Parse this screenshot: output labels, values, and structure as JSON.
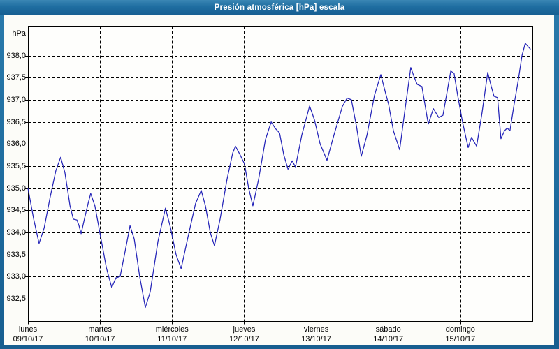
{
  "window": {
    "title": "Presión atmosférica [hPa] escala"
  },
  "colors": {
    "frame_blue": "#1d6b9e",
    "titlebar_top": "#3a86b4",
    "titlebar_bottom": "#175f92",
    "content_bg": "#fcfcf8",
    "plot_bg": "#fefefc",
    "grid_color": "#000000",
    "line_color": "#2424b8",
    "title_text": "#ffffff",
    "label_text": "#000000"
  },
  "chart_data": {
    "type": "line",
    "title": "Presión atmosférica [hPa] escala",
    "unit_label": "hPa",
    "ylabel": "hPa",
    "ylim": [
      932.0,
      938.67
    ],
    "grid": "dashed",
    "legend": "none",
    "x_total_hours": 168,
    "y_ticks": [
      {
        "value": 938.5,
        "label": "hPa"
      },
      {
        "value": 938.0,
        "label": "938,0"
      },
      {
        "value": 937.5,
        "label": "937,5"
      },
      {
        "value": 937.0,
        "label": "937,0"
      },
      {
        "value": 936.5,
        "label": "936,5"
      },
      {
        "value": 936.0,
        "label": "936,0"
      },
      {
        "value": 935.5,
        "label": "935,5"
      },
      {
        "value": 935.0,
        "label": "935,0"
      },
      {
        "value": 934.5,
        "label": "934,5"
      },
      {
        "value": 934.0,
        "label": "934,0"
      },
      {
        "value": 933.5,
        "label": "933,5"
      },
      {
        "value": 933.0,
        "label": "933,0"
      },
      {
        "value": 932.5,
        "label": "932,5"
      }
    ],
    "x_days": [
      {
        "weekday": "lunes",
        "date": "09/10/17"
      },
      {
        "weekday": "martes",
        "date": "10/10/17"
      },
      {
        "weekday": "miércoles",
        "date": "11/10/17"
      },
      {
        "weekday": "jueves",
        "date": "12/10/17"
      },
      {
        "weekday": "viernes",
        "date": "13/10/17"
      },
      {
        "weekday": "sábado",
        "date": "14/10/17"
      },
      {
        "weekday": "domingo",
        "date": "15/10/17"
      }
    ],
    "series": [
      {
        "name": "Presión atmosférica",
        "color": "#2424b8",
        "points_format": "[hours_since_monday_00, hPa]",
        "points": [
          [
            0,
            935.0
          ],
          [
            1.9,
            934.3
          ],
          [
            3.7,
            933.75
          ],
          [
            5.4,
            934.1
          ],
          [
            7.4,
            934.8
          ],
          [
            9.3,
            935.4
          ],
          [
            10.9,
            935.7
          ],
          [
            12.3,
            935.35
          ],
          [
            14,
            934.6
          ],
          [
            15.1,
            934.3
          ],
          [
            16.3,
            934.28
          ],
          [
            17,
            934.15
          ],
          [
            17.7,
            933.97
          ],
          [
            18.8,
            934.3
          ],
          [
            20,
            934.65
          ],
          [
            20.9,
            934.88
          ],
          [
            22.3,
            934.6
          ],
          [
            24.2,
            933.9
          ],
          [
            26.1,
            933.2
          ],
          [
            27.9,
            932.75
          ],
          [
            29.3,
            932.97
          ],
          [
            30.7,
            933.0
          ],
          [
            32.3,
            933.55
          ],
          [
            34,
            934.15
          ],
          [
            35.4,
            933.85
          ],
          [
            37.2,
            933.0
          ],
          [
            39.1,
            932.3
          ],
          [
            40.7,
            932.65
          ],
          [
            43.3,
            933.8
          ],
          [
            45.8,
            934.55
          ],
          [
            47.5,
            934.1
          ],
          [
            49.3,
            933.5
          ],
          [
            51,
            933.18
          ],
          [
            53.3,
            933.9
          ],
          [
            55.8,
            934.65
          ],
          [
            57.7,
            934.95
          ],
          [
            59.1,
            934.6
          ],
          [
            60.7,
            934.0
          ],
          [
            62.1,
            933.7
          ],
          [
            64,
            934.3
          ],
          [
            66.3,
            935.2
          ],
          [
            68.2,
            935.8
          ],
          [
            69.1,
            935.95
          ],
          [
            70.7,
            935.75
          ],
          [
            72.1,
            935.55
          ],
          [
            73.5,
            935.0
          ],
          [
            74.9,
            934.6
          ],
          [
            76.8,
            935.2
          ],
          [
            79.1,
            936.1
          ],
          [
            81,
            936.5
          ],
          [
            82.4,
            936.35
          ],
          [
            83.8,
            936.25
          ],
          [
            85.2,
            935.75
          ],
          [
            86.6,
            935.43
          ],
          [
            88,
            935.62
          ],
          [
            89.1,
            935.48
          ],
          [
            91.2,
            936.2
          ],
          [
            93.8,
            936.86
          ],
          [
            95.4,
            936.55
          ],
          [
            97.3,
            936.0
          ],
          [
            99.6,
            935.63
          ],
          [
            101.9,
            936.2
          ],
          [
            104.7,
            936.85
          ],
          [
            106.3,
            937.04
          ],
          [
            107.7,
            937.0
          ],
          [
            109.4,
            936.4
          ],
          [
            111,
            935.72
          ],
          [
            112.9,
            936.2
          ],
          [
            115.4,
            937.1
          ],
          [
            117.5,
            937.57
          ],
          [
            118.9,
            937.2
          ],
          [
            120.1,
            936.9
          ],
          [
            121.7,
            936.3
          ],
          [
            123.8,
            935.87
          ],
          [
            125.6,
            936.8
          ],
          [
            127.5,
            937.73
          ],
          [
            128.7,
            937.5
          ],
          [
            129.6,
            937.35
          ],
          [
            131.2,
            937.3
          ],
          [
            133.3,
            936.45
          ],
          [
            135,
            936.8
          ],
          [
            136.8,
            936.6
          ],
          [
            138.2,
            936.65
          ],
          [
            139.9,
            937.3
          ],
          [
            140.8,
            937.65
          ],
          [
            141.9,
            937.6
          ],
          [
            143.1,
            937.1
          ],
          [
            144.7,
            936.5
          ],
          [
            146.6,
            935.92
          ],
          [
            147.7,
            936.15
          ],
          [
            149.4,
            935.95
          ],
          [
            151.2,
            936.7
          ],
          [
            153.1,
            937.62
          ],
          [
            154.3,
            937.3
          ],
          [
            155.2,
            937.08
          ],
          [
            156.4,
            937.05
          ],
          [
            157.5,
            936.12
          ],
          [
            158.7,
            936.3
          ],
          [
            159.6,
            936.36
          ],
          [
            160.5,
            936.3
          ],
          [
            161.9,
            936.9
          ],
          [
            163.3,
            937.45
          ],
          [
            164.5,
            938.0
          ],
          [
            165.6,
            938.28
          ],
          [
            166.6,
            938.2
          ],
          [
            167.3,
            938.15
          ]
        ]
      }
    ]
  }
}
